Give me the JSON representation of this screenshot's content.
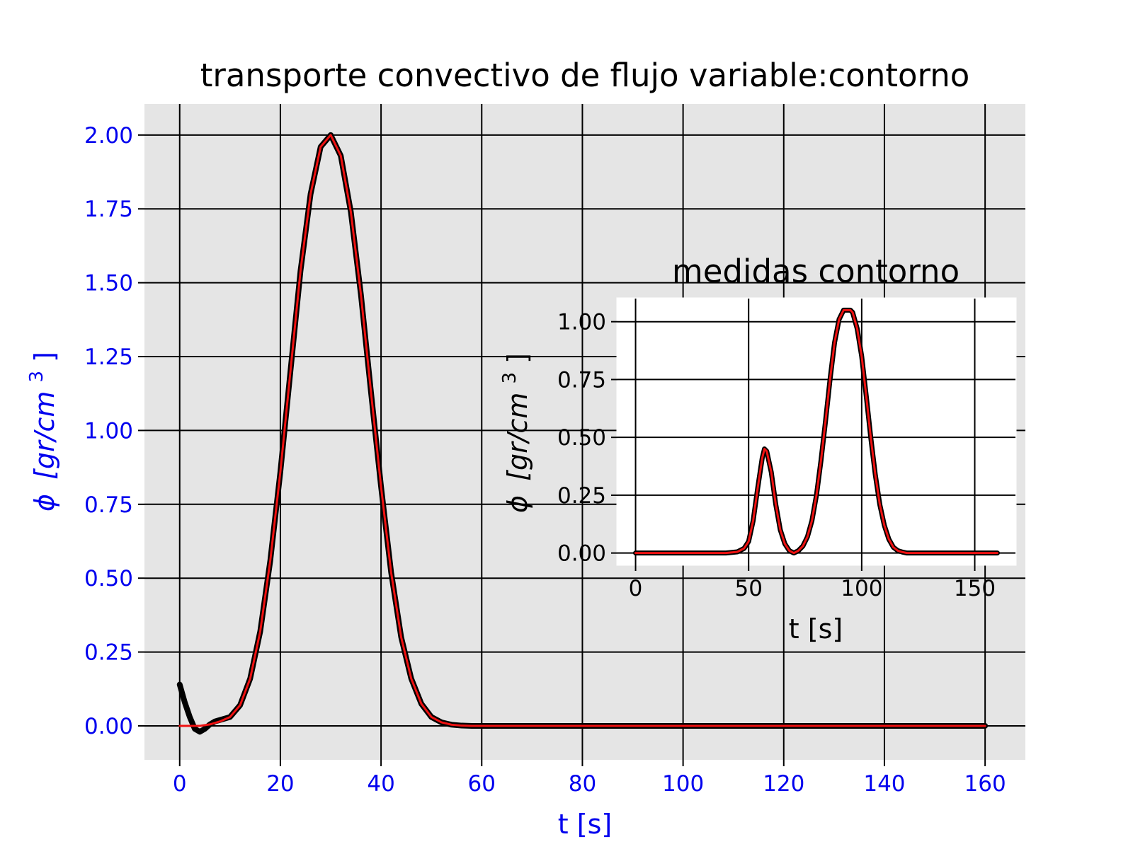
{
  "chart_data": [
    {
      "type": "line",
      "title": "transporte convectivo de flujo variable:contorno",
      "xlabel": "t [s]",
      "ylabel_symbol": "ϕ",
      "ylabel_unit": "[gr/cm",
      "ylabel_exp": "3",
      "ylabel_close": "]",
      "xlim": [
        -7,
        168
      ],
      "ylim": [
        -0.115,
        2.105
      ],
      "xticks": [
        0,
        20,
        40,
        60,
        80,
        100,
        120,
        140,
        160
      ],
      "xtick_labels": [
        "0",
        "20",
        "40",
        "60",
        "80",
        "100",
        "120",
        "140",
        "160"
      ],
      "yticks": [
        0.0,
        0.25,
        0.5,
        0.75,
        1.0,
        1.25,
        1.5,
        1.75,
        2.0
      ],
      "ytick_labels": [
        "0.00",
        "0.25",
        "0.50",
        "0.75",
        "1.00",
        "1.25",
        "1.50",
        "1.75",
        "2.00"
      ],
      "grid": true,
      "tick_color": "#0000ee",
      "background": "#e5e5e5",
      "series": [
        {
          "color": "#000000",
          "style": "thick",
          "x": [
            0,
            1,
            2,
            3,
            4,
            5,
            6,
            7,
            8,
            9,
            10,
            12,
            14,
            16,
            18,
            20,
            22,
            24,
            26,
            28,
            30,
            32,
            34,
            36,
            38,
            40,
            42,
            44,
            46,
            48,
            50,
            52,
            54,
            56,
            58,
            60,
            80,
            100,
            120,
            140,
            160
          ],
          "y": [
            0.14,
            0.08,
            0.03,
            -0.01,
            -0.02,
            -0.01,
            0.005,
            0.015,
            0.02,
            0.025,
            0.03,
            0.07,
            0.16,
            0.32,
            0.56,
            0.86,
            1.2,
            1.54,
            1.8,
            1.96,
            2.0,
            1.93,
            1.74,
            1.46,
            1.13,
            0.81,
            0.52,
            0.3,
            0.16,
            0.075,
            0.03,
            0.012,
            0.004,
            0.001,
            0.0,
            0.0,
            0.0,
            0.0,
            0.0,
            0.0,
            0.0
          ]
        },
        {
          "color": "#ee1111",
          "style": "thin",
          "x": [
            0,
            2,
            4,
            6,
            8,
            10,
            12,
            14,
            16,
            18,
            20,
            22,
            24,
            26,
            28,
            30,
            32,
            34,
            36,
            38,
            40,
            42,
            44,
            46,
            48,
            50,
            52,
            54,
            56,
            58,
            60,
            80,
            100,
            120,
            140,
            160
          ],
          "y": [
            0.0,
            0.0,
            0.0,
            0.005,
            0.015,
            0.03,
            0.07,
            0.16,
            0.32,
            0.56,
            0.86,
            1.2,
            1.54,
            1.8,
            1.96,
            2.0,
            1.93,
            1.74,
            1.46,
            1.13,
            0.81,
            0.52,
            0.3,
            0.16,
            0.075,
            0.03,
            0.012,
            0.004,
            0.001,
            0.0,
            0.0,
            0.0,
            0.0,
            0.0,
            0.0,
            0.0
          ]
        }
      ]
    },
    {
      "type": "line",
      "title": "medidas contorno",
      "xlabel": "t [s]",
      "ylabel_symbol": "ϕ",
      "ylabel_unit": "[gr/cm",
      "ylabel_exp": "3",
      "ylabel_close": "]",
      "xlim": [
        -8,
        168
      ],
      "ylim": [
        -0.05,
        1.1
      ],
      "xticks": [
        0,
        50,
        100,
        150
      ],
      "xtick_labels": [
        "0",
        "50",
        "100",
        "150"
      ],
      "yticks": [
        0.0,
        0.25,
        0.5,
        0.75,
        1.0
      ],
      "ytick_labels": [
        "0.00",
        "0.25",
        "0.50",
        "0.75",
        "1.00"
      ],
      "grid": true,
      "background": "#ffffff",
      "series": [
        {
          "color": "#000000",
          "style": "thick",
          "x": [
            0,
            20,
            40,
            45,
            48,
            50,
            52,
            54,
            56,
            57,
            58,
            60,
            62,
            64,
            66,
            68,
            70,
            72,
            74,
            76,
            78,
            80,
            82,
            84,
            86,
            88,
            90,
            92,
            94,
            95,
            96,
            98,
            100,
            102,
            104,
            106,
            108,
            110,
            112,
            114,
            116,
            118,
            120,
            125,
            130,
            140,
            160
          ],
          "y": [
            0.0,
            0.0,
            0.0,
            0.005,
            0.02,
            0.05,
            0.14,
            0.28,
            0.41,
            0.45,
            0.44,
            0.35,
            0.21,
            0.1,
            0.04,
            0.01,
            0.0,
            0.01,
            0.03,
            0.07,
            0.14,
            0.25,
            0.4,
            0.57,
            0.75,
            0.91,
            1.01,
            1.05,
            1.05,
            1.05,
            1.04,
            0.97,
            0.85,
            0.68,
            0.5,
            0.34,
            0.21,
            0.12,
            0.06,
            0.025,
            0.01,
            0.004,
            0.0,
            0.0,
            0.0,
            0.0,
            0.0
          ]
        },
        {
          "color": "#ee1111",
          "style": "thin",
          "x": [
            0,
            20,
            40,
            45,
            48,
            50,
            52,
            54,
            56,
            57,
            58,
            60,
            62,
            64,
            66,
            68,
            70,
            72,
            74,
            76,
            78,
            80,
            82,
            84,
            86,
            88,
            90,
            92,
            94,
            95,
            96,
            98,
            100,
            102,
            104,
            106,
            108,
            110,
            112,
            114,
            116,
            118,
            120,
            125,
            130,
            140,
            160
          ],
          "y": [
            0.0,
            0.0,
            0.0,
            0.005,
            0.02,
            0.05,
            0.14,
            0.28,
            0.41,
            0.45,
            0.44,
            0.35,
            0.21,
            0.1,
            0.04,
            0.01,
            0.0,
            0.01,
            0.03,
            0.07,
            0.14,
            0.25,
            0.4,
            0.57,
            0.75,
            0.91,
            1.01,
            1.05,
            1.05,
            1.05,
            1.04,
            0.97,
            0.85,
            0.68,
            0.5,
            0.34,
            0.21,
            0.12,
            0.06,
            0.025,
            0.01,
            0.004,
            0.0,
            0.0,
            0.0,
            0.0,
            0.0
          ]
        }
      ]
    }
  ]
}
